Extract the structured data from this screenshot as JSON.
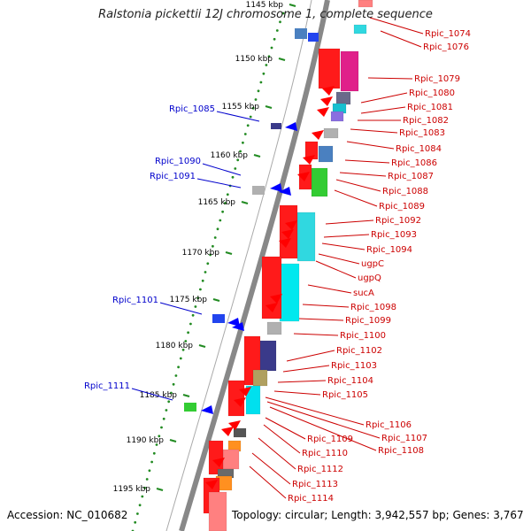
{
  "header": {
    "title": "Ralstonia pickettii 12J chromosome 1, complete sequence"
  },
  "footer": {
    "accession": "Accession: NC_010682",
    "topology": "Topology: circular; Length: 3,942,557 bp; Genes: 3,767"
  },
  "scale": {
    "ticks": [
      "1145 kbp",
      "1150 kbp",
      "1155 kbp",
      "1160 kbp",
      "1165 kbp",
      "1170 kbp",
      "1175 kbp",
      "1180 kbp",
      "1185 kbp",
      "1190 kbp",
      "1195 kbp"
    ]
  },
  "colors": {
    "forward_label": "#0000cc",
    "reverse_label": "#cc0000",
    "forward_gene": "#0000ff",
    "reverse_gene": "#ff0000",
    "backbone": "#888888",
    "tick": "#228b22"
  },
  "labels": {
    "forward": [
      "Rpic_1085",
      "Rpic_1090",
      "Rpic_1091",
      "Rpic_1101",
      "Rpic_1111"
    ],
    "reverse": [
      "Rpic_1074",
      "Rpic_1076",
      "Rpic_1079",
      "Rpic_1080",
      "Rpic_1081",
      "Rpic_1082",
      "Rpic_1083",
      "Rpic_1084",
      "Rpic_1086",
      "Rpic_1087",
      "Rpic_1088",
      "Rpic_1089",
      "Rpic_1092",
      "Rpic_1093",
      "Rpic_1094",
      "ugpC",
      "ugpQ",
      "sucA",
      "Rpic_1098",
      "Rpic_1099",
      "Rpic_1100",
      "Rpic_1102",
      "Rpic_1103",
      "Rpic_1104",
      "Rpic_1105",
      "Rpic_1106",
      "Rpic_1107",
      "Rpic_1108",
      "Rpic_1109",
      "Rpic_1110",
      "Rpic_1112",
      "Rpic_1113",
      "Rpic_1114"
    ]
  }
}
